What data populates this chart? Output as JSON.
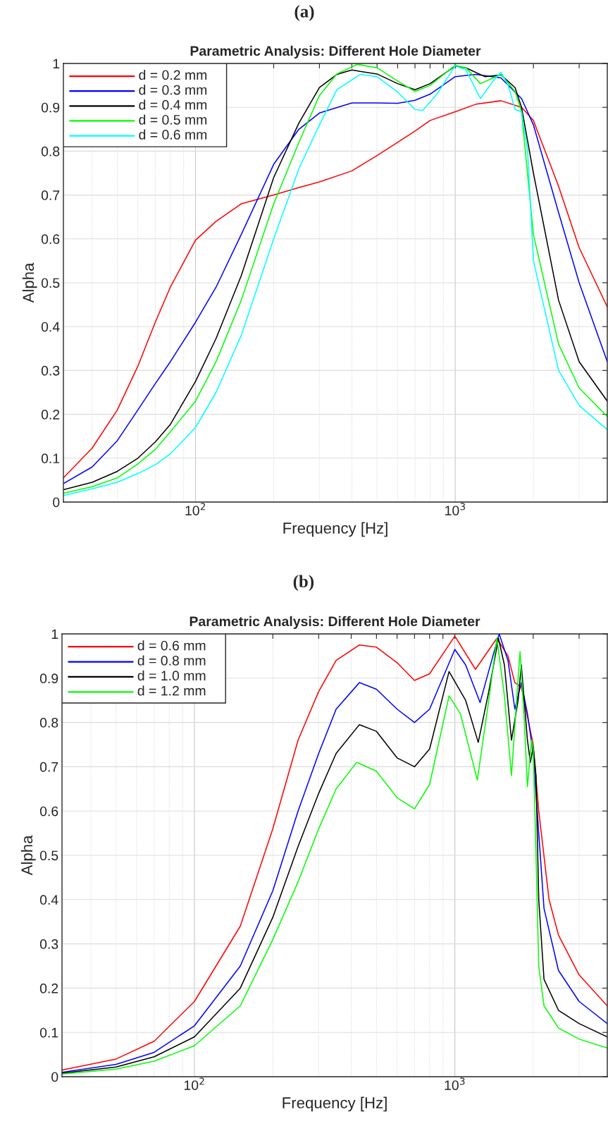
{
  "chart_data": [
    {
      "type": "line",
      "title": "Parametric Analysis: Different Hole Diameter",
      "xlabel": "Frequency [Hz]",
      "ylabel": "Alpha",
      "annotations": [
        "(a)"
      ],
      "log": "x",
      "grid": true,
      "legend": "top left",
      "xlim": [
        31,
        3850
      ],
      "ylim": [
        0,
        1
      ],
      "xticks": [
        {
          "value": 40,
          "label": null
        },
        {
          "value": 50,
          "label": null
        },
        {
          "value": 60,
          "label": null
        },
        {
          "value": 70,
          "label": null
        },
        {
          "value": 80,
          "label": null
        },
        {
          "value": 90,
          "label": null
        },
        {
          "value": 100,
          "label": "10$^{2}$"
        },
        {
          "value": 200,
          "label": null
        },
        {
          "value": 300,
          "label": null
        },
        {
          "value": 400,
          "label": null
        },
        {
          "value": 500,
          "label": null
        },
        {
          "value": 600,
          "label": null
        },
        {
          "value": 700,
          "label": null
        },
        {
          "value": 800,
          "label": null
        },
        {
          "value": 900,
          "label": null
        },
        {
          "value": 1000,
          "label": "10$^{3}$"
        },
        {
          "value": 2000,
          "label": null
        },
        {
          "value": 3000,
          "label": null
        }
      ],
      "yticks": [
        0,
        0.1,
        0.2,
        0.3,
        0.4,
        0.5,
        0.6,
        0.7,
        0.8,
        0.9,
        1
      ],
      "series": [
        {
          "name": "d = 0.2 mm",
          "color": "#ff0000",
          "x": [
            31,
            40,
            50,
            60,
            70,
            80,
            100,
            120,
            150,
            200,
            250,
            300,
            400,
            500,
            600,
            700,
            800,
            1000,
            1200,
            1500,
            1800,
            2000,
            2500,
            3000,
            3850
          ],
          "values": [
            0.055,
            0.123,
            0.21,
            0.31,
            0.41,
            0.49,
            0.597,
            0.64,
            0.68,
            0.7,
            0.717,
            0.73,
            0.755,
            0.79,
            0.82,
            0.846,
            0.87,
            0.89,
            0.907,
            0.915,
            0.9,
            0.87,
            0.72,
            0.58,
            0.445
          ]
        },
        {
          "name": "d = 0.3 mm",
          "color": "#0000ff",
          "x": [
            31,
            40,
            50,
            60,
            70,
            80,
            100,
            120,
            150,
            200,
            250,
            300,
            400,
            500,
            600,
            700,
            800,
            1000,
            1200,
            1500,
            1800,
            2000,
            2500,
            3000,
            3850
          ],
          "values": [
            0.042,
            0.08,
            0.14,
            0.21,
            0.27,
            0.32,
            0.41,
            0.49,
            0.61,
            0.77,
            0.85,
            0.887,
            0.91,
            0.91,
            0.909,
            0.916,
            0.93,
            0.97,
            0.975,
            0.967,
            0.92,
            0.86,
            0.66,
            0.5,
            0.32
          ]
        },
        {
          "name": "d = 0.4 mm",
          "color": "#000000",
          "x": [
            31,
            40,
            50,
            60,
            70,
            80,
            100,
            120,
            150,
            200,
            250,
            300,
            350,
            400,
            500,
            600,
            700,
            800,
            1000,
            1100,
            1300,
            1500,
            1700,
            1800,
            2000,
            2500,
            3000,
            3850
          ],
          "values": [
            0.028,
            0.045,
            0.07,
            0.1,
            0.137,
            0.177,
            0.275,
            0.373,
            0.516,
            0.74,
            0.864,
            0.945,
            0.975,
            0.985,
            0.976,
            0.954,
            0.94,
            0.954,
            0.994,
            0.99,
            0.97,
            0.974,
            0.945,
            0.9,
            0.75,
            0.46,
            0.32,
            0.23
          ]
        },
        {
          "name": "d = 0.5 mm",
          "color": "#00ff00",
          "x": [
            31,
            40,
            50,
            60,
            70,
            80,
            100,
            120,
            150,
            200,
            250,
            300,
            350,
            420,
            500,
            600,
            700,
            800,
            1000,
            1100,
            1250,
            1400,
            1500,
            1700,
            1800,
            2000,
            2500,
            3000,
            3850
          ],
          "values": [
            0.02,
            0.035,
            0.055,
            0.087,
            0.12,
            0.16,
            0.23,
            0.32,
            0.46,
            0.68,
            0.82,
            0.927,
            0.976,
            0.998,
            0.99,
            0.96,
            0.936,
            0.95,
            0.996,
            0.99,
            0.954,
            0.967,
            0.975,
            0.936,
            0.89,
            0.61,
            0.36,
            0.26,
            0.195
          ]
        },
        {
          "name": "d = 0.6 mm",
          "color": "#00ffff",
          "x": [
            31,
            40,
            50,
            60,
            70,
            80,
            100,
            120,
            150,
            200,
            250,
            300,
            350,
            430,
            500,
            600,
            700,
            750,
            850,
            1000,
            1100,
            1250,
            1400,
            1500,
            1600,
            1700,
            1800,
            1900,
            2000,
            2500,
            3000,
            3850
          ],
          "values": [
            0.015,
            0.03,
            0.045,
            0.065,
            0.085,
            0.11,
            0.17,
            0.25,
            0.38,
            0.6,
            0.76,
            0.86,
            0.94,
            0.975,
            0.97,
            0.935,
            0.895,
            0.893,
            0.93,
            0.995,
            0.985,
            0.92,
            0.96,
            0.98,
            0.95,
            0.895,
            0.89,
            0.8,
            0.55,
            0.3,
            0.22,
            0.165
          ]
        }
      ]
    },
    {
      "type": "line",
      "title": "Parametric Analysis: Different Hole Diameter",
      "xlabel": "Frequency [Hz]",
      "ylabel": "Alpha",
      "annotations": [
        "(b)"
      ],
      "log": "x",
      "grid": true,
      "legend": "top left",
      "xlim": [
        31,
        3850
      ],
      "ylim": [
        0,
        1
      ],
      "xticks": [
        {
          "value": 40,
          "label": null
        },
        {
          "value": 50,
          "label": null
        },
        {
          "value": 60,
          "label": null
        },
        {
          "value": 70,
          "label": null
        },
        {
          "value": 80,
          "label": null
        },
        {
          "value": 90,
          "label": null
        },
        {
          "value": 100,
          "label": "10$^{2}$"
        },
        {
          "value": 200,
          "label": null
        },
        {
          "value": 300,
          "label": null
        },
        {
          "value": 400,
          "label": null
        },
        {
          "value": 500,
          "label": null
        },
        {
          "value": 600,
          "label": null
        },
        {
          "value": 700,
          "label": null
        },
        {
          "value": 800,
          "label": null
        },
        {
          "value": 900,
          "label": null
        },
        {
          "value": 1000,
          "label": "10$^{3}$"
        },
        {
          "value": 2000,
          "label": null
        },
        {
          "value": 3000,
          "label": null
        }
      ],
      "yticks": [
        0,
        0.1,
        0.2,
        0.3,
        0.4,
        0.5,
        0.6,
        0.7,
        0.8,
        0.9,
        1
      ],
      "series": [
        {
          "name": "d = 0.6 mm",
          "color": "#ff0000",
          "x": [
            31,
            50,
            70,
            100,
            150,
            200,
            250,
            300,
            350,
            430,
            500,
            600,
            700,
            800,
            1000,
            1200,
            1450,
            1600,
            1700,
            1800,
            2000,
            2100,
            2300,
            2500,
            3000,
            3850
          ],
          "values": [
            0.015,
            0.04,
            0.08,
            0.17,
            0.34,
            0.56,
            0.76,
            0.87,
            0.94,
            0.975,
            0.97,
            0.935,
            0.895,
            0.91,
            0.995,
            0.92,
            0.99,
            0.95,
            0.89,
            0.88,
            0.75,
            0.6,
            0.4,
            0.32,
            0.23,
            0.16
          ]
        },
        {
          "name": "d = 0.8 mm",
          "color": "#0000ff",
          "x": [
            31,
            50,
            70,
            100,
            150,
            200,
            250,
            300,
            350,
            430,
            500,
            600,
            700,
            800,
            1000,
            1100,
            1250,
            1400,
            1480,
            1600,
            1700,
            1800,
            1900,
            2000,
            2100,
            2200,
            2500,
            3000,
            3850
          ],
          "values": [
            0.01,
            0.028,
            0.055,
            0.115,
            0.25,
            0.42,
            0.6,
            0.73,
            0.83,
            0.89,
            0.875,
            0.83,
            0.8,
            0.83,
            0.965,
            0.93,
            0.845,
            0.95,
            1.0,
            0.94,
            0.83,
            0.89,
            0.82,
            0.73,
            0.55,
            0.38,
            0.24,
            0.17,
            0.12
          ]
        },
        {
          "name": "d = 1.0 mm",
          "color": "#000000",
          "x": [
            31,
            50,
            70,
            100,
            150,
            200,
            250,
            300,
            350,
            430,
            500,
            600,
            700,
            800,
            950,
            1100,
            1230,
            1350,
            1470,
            1550,
            1650,
            1750,
            1800,
            1900,
            1950,
            2000,
            2050,
            2100,
            2200,
            2500,
            3000,
            3850
          ],
          "values": [
            0.008,
            0.022,
            0.045,
            0.09,
            0.2,
            0.36,
            0.52,
            0.64,
            0.73,
            0.795,
            0.78,
            0.72,
            0.7,
            0.74,
            0.915,
            0.85,
            0.755,
            0.87,
            0.99,
            0.93,
            0.76,
            0.85,
            0.93,
            0.76,
            0.71,
            0.745,
            0.68,
            0.4,
            0.22,
            0.15,
            0.12,
            0.09
          ]
        },
        {
          "name": "d = 1.2 mm",
          "color": "#00ff00",
          "x": [
            31,
            50,
            70,
            100,
            150,
            200,
            250,
            300,
            350,
            420,
            500,
            600,
            700,
            800,
            950,
            1050,
            1220,
            1350,
            1450,
            1550,
            1650,
            1750,
            1780,
            1850,
            1900,
            1970,
            2000,
            2050,
            2100,
            2200,
            2500,
            3000,
            3850
          ],
          "values": [
            0.006,
            0.017,
            0.035,
            0.07,
            0.16,
            0.31,
            0.44,
            0.56,
            0.65,
            0.71,
            0.69,
            0.63,
            0.605,
            0.66,
            0.86,
            0.82,
            0.67,
            0.85,
            0.99,
            0.86,
            0.68,
            0.9,
            0.96,
            0.8,
            0.655,
            0.76,
            0.74,
            0.5,
            0.25,
            0.16,
            0.11,
            0.085,
            0.065
          ]
        }
      ]
    }
  ]
}
